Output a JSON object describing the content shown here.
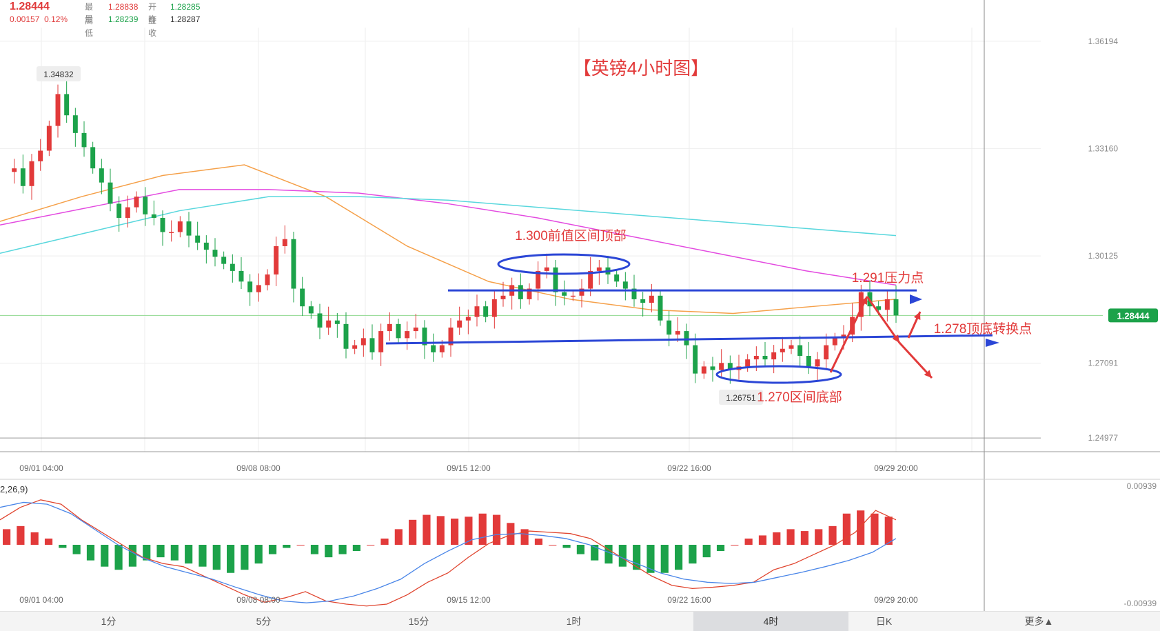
{
  "quote": {
    "price": "1.28444",
    "change": "0.00157",
    "change_pct": "0.12%",
    "high_label": "最高",
    "high": "1.28838",
    "open_label": "开盘",
    "open": "1.28285",
    "low_label": "最低",
    "low": "1.28239",
    "prev_close_label": "昨收",
    "prev_close": "1.28287"
  },
  "chart_data": [
    {
      "type": "candlestick",
      "title": "【英镑4小时图】",
      "x_tick_labels": [
        "09/01 04:00",
        "09/08 08:00",
        "09/15 12:00",
        "09/22 16:00",
        "09/29 20:00"
      ],
      "y_tick_labels": [
        "1.36194",
        "1.33160",
        "1.30125",
        "1.27091",
        "1.24977"
      ],
      "ylim": [
        1.2498,
        1.3619
      ],
      "current_price": "1.28444",
      "max_label": "1.34832",
      "min_label": "1.26751",
      "close_path": [
        1.325,
        1.326,
        1.321,
        1.328,
        1.331,
        1.338,
        1.347,
        1.341,
        1.336,
        1.332,
        1.326,
        1.322,
        1.316,
        1.312,
        1.315,
        1.318,
        1.313,
        1.312,
        1.308,
        1.308,
        1.311,
        1.307,
        1.305,
        1.303,
        1.301,
        1.299,
        1.297,
        1.294,
        1.291,
        1.293,
        1.296,
        1.304,
        1.306,
        1.292,
        1.287,
        1.285,
        1.281,
        1.283,
        1.282,
        1.275,
        1.276,
        1.278,
        1.274,
        1.28,
        1.282,
        1.278,
        1.28,
        1.281,
        1.276,
        1.274,
        1.276,
        1.281,
        1.283,
        1.284,
        1.287,
        1.284,
        1.289,
        1.29,
        1.293,
        1.289,
        1.292,
        1.297,
        1.298,
        1.291,
        1.29,
        1.29,
        1.292,
        1.297,
        1.298,
        1.296,
        1.294,
        1.292,
        1.289,
        1.288,
        1.29,
        1.283,
        1.279,
        1.28,
        1.276,
        1.268,
        1.27,
        1.269,
        1.271,
        1.269,
        1.27,
        1.272,
        1.273,
        1.272,
        1.274,
        1.275,
        1.276,
        1.273,
        1.27,
        1.272,
        1.276,
        1.278,
        1.279,
        1.284,
        1.291,
        1.287,
        1.286,
        1.289,
        1.28444
      ],
      "moving_averages": [
        {
          "color": "#f5a049",
          "values": [
            1.311,
            1.318,
            1.324,
            1.327,
            1.318,
            1.304,
            1.294,
            1.289,
            1.286,
            1.285,
            1.287,
            1.289
          ]
        },
        {
          "color": "#e34ae0",
          "values": [
            1.31,
            1.315,
            1.32,
            1.32,
            1.319,
            1.316,
            1.312,
            1.307,
            1.302,
            1.297,
            1.293
          ]
        },
        {
          "color": "#58d7dd",
          "values": [
            1.302,
            1.308,
            1.314,
            1.318,
            1.318,
            1.317,
            1.315,
            1.313,
            1.311,
            1.309,
            1.307
          ]
        }
      ],
      "annotations": [
        {
          "text": "1.300前值区间顶部",
          "color": "#e23a3a"
        },
        {
          "text": "1.291压力点",
          "color": "#e23a3a"
        },
        {
          "text": "1.278顶底转换点",
          "color": "#e23a3a"
        },
        {
          "text": "1.270区间底部",
          "color": "#e23a3a"
        }
      ]
    },
    {
      "type": "bar",
      "indicator_params": "2,26,9)",
      "x_tick_labels": [
        "09/01 04:00",
        "09/08 08:00",
        "09/15 12:00",
        "09/22 16:00",
        "09/29 20:00"
      ],
      "y_tick_labels": [
        "0.00939",
        "-0.00939"
      ],
      "ylim": [
        -0.00939,
        0.00939
      ],
      "histogram": [
        0.0025,
        0.003,
        0.002,
        0.001,
        -0.0005,
        -0.0015,
        -0.0025,
        -0.0035,
        -0.004,
        -0.0035,
        -0.0025,
        -0.002,
        -0.0025,
        -0.003,
        -0.0035,
        -0.004,
        -0.0045,
        -0.004,
        -0.003,
        -0.0015,
        -0.0005,
        0,
        -0.0015,
        -0.002,
        -0.0015,
        -0.001,
        0,
        0.001,
        0.0025,
        0.004,
        0.0048,
        0.0046,
        0.0042,
        0.0045,
        0.005,
        0.0048,
        0.0035,
        0.0025,
        0.001,
        0,
        -0.0005,
        -0.0015,
        -0.0025,
        -0.003,
        -0.0035,
        -0.004,
        -0.0045,
        -0.0045,
        -0.004,
        -0.003,
        -0.002,
        -0.001,
        0,
        0.001,
        0.0015,
        0.002,
        0.0025,
        0.0022,
        0.0025,
        0.003,
        0.005,
        0.0055,
        0.005,
        0.0045
      ],
      "dif": [
        0.004,
        0.006,
        0.0072,
        0.0065,
        0.004,
        0.002,
        0,
        -0.002,
        -0.003,
        -0.0035,
        -0.005,
        -0.0065,
        -0.008,
        -0.0092,
        -0.0085,
        -0.0075,
        -0.009,
        -0.0095,
        -0.0098,
        -0.0095,
        -0.008,
        -0.006,
        -0.0045,
        -0.002,
        0.0002,
        0.0015,
        0.0022,
        0.002,
        0.0018,
        0.001,
        -0.001,
        -0.003,
        -0.005,
        -0.0065,
        -0.007,
        -0.0068,
        -0.0065,
        -0.006,
        -0.004,
        -0.003,
        -0.0015,
        0,
        0.002,
        0.0055,
        0.004
      ],
      "dea": [
        0.006,
        0.0068,
        0.0065,
        0.005,
        0.0025,
        0,
        -0.002,
        -0.0035,
        -0.0045,
        -0.0055,
        -0.0068,
        -0.008,
        -0.009,
        -0.0093,
        -0.009,
        -0.0082,
        -0.007,
        -0.0055,
        -0.003,
        -0.001,
        0.0008,
        0.0016,
        0.0018,
        0.0015,
        0.001,
        0,
        -0.0015,
        -0.003,
        -0.0045,
        -0.0055,
        -0.006,
        -0.0062,
        -0.006,
        -0.0052,
        -0.0044,
        -0.0035,
        -0.0025,
        -0.0012,
        0.001
      ]
    }
  ],
  "timeframes": [
    "1分",
    "5分",
    "15分",
    "1时",
    "4时",
    "日K",
    "更多▲"
  ],
  "active_timeframe": "4时",
  "colors": {
    "up": "#e23a3a",
    "down": "#1ca24a",
    "trendline": "#2b46d6",
    "ellipse": "#2b46d6",
    "arrow": "#e23a3a"
  }
}
